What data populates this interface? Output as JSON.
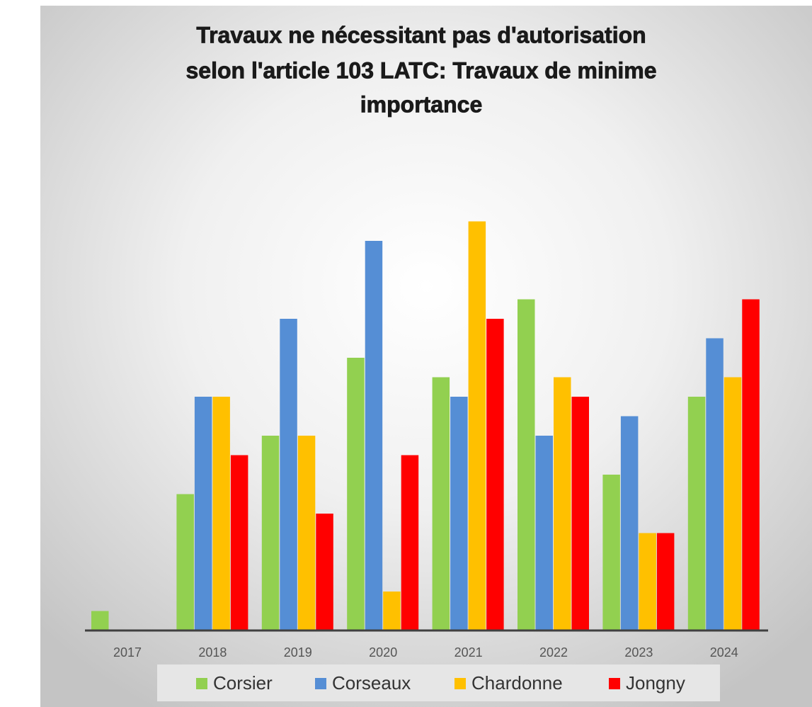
{
  "chart_data": {
    "type": "bar",
    "title": [
      "Travaux ne nécessitant pas d'autorisation",
      "selon l'article 103 LATC: Travaux de minime",
      "importance"
    ],
    "categories": [
      "2017",
      "2018",
      "2019",
      "2020",
      "2021",
      "2022",
      "2023",
      "2024"
    ],
    "series": [
      {
        "name": "Corsier",
        "color": "#92d050",
        "values": [
          1,
          7,
          10,
          14,
          13,
          17,
          8,
          12
        ]
      },
      {
        "name": "Corseaux",
        "color": "#558ed5",
        "values": [
          0,
          12,
          16,
          20,
          12,
          10,
          11,
          15
        ]
      },
      {
        "name": "Chardonne",
        "color": "#ffc000",
        "values": [
          0,
          12,
          10,
          2,
          21,
          13,
          5,
          13
        ]
      },
      {
        "name": "Jongny",
        "color": "#ff0000",
        "values": [
          0,
          9,
          6,
          9,
          16,
          12,
          5,
          17
        ]
      }
    ],
    "legend": "bottom"
  }
}
